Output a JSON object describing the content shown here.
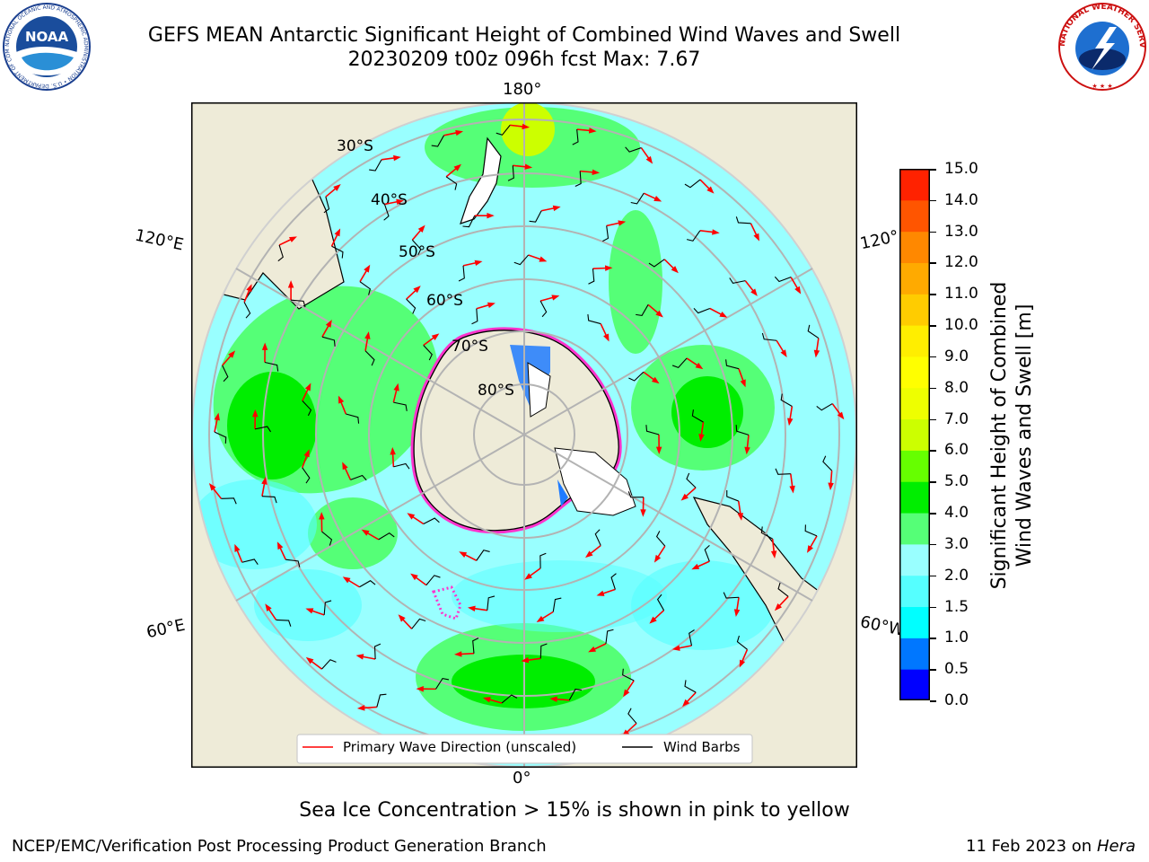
{
  "header": {
    "title_line1": "GEFS MEAN Antarctic Significant Height of Combined Wind Waves and Swell",
    "title_line2": "20230209 t00z 096h fcst   Max: 7.67"
  },
  "logos": {
    "noaa_text": "NOAA",
    "noaa_ring_text": "NATIONAL OCEANIC AND ATMOSPHERIC ADMINISTRATION • U.S. DEPARTMENT OF COMMERCE",
    "nws_ring_text": "NATIONAL WEATHER SERVICE"
  },
  "map": {
    "longitude_labels": {
      "top": "180°",
      "bottom": "0°",
      "left_upper": "120°E",
      "right_upper": "120°",
      "left_lower": "60°E",
      "right_lower": "60°W"
    },
    "latitude_labels": [
      "30°S",
      "40°S",
      "50°S",
      "60°S",
      "70°S",
      "80°S"
    ],
    "legend": {
      "wave_direction": "Primary Wave Direction (unscaled)",
      "wind_barbs": "Wind Barbs"
    },
    "colors": {
      "land": "#eeebd8",
      "ocean_low": "#99ffff",
      "grid": "#b3b3b3",
      "arrow": "#ff0000"
    }
  },
  "colorbar": {
    "label_line1": "Significant Height of Combined",
    "label_line2": "Wind Waves and Swell [m]",
    "ticks": [
      "15.0",
      "14.0",
      "13.0",
      "12.0",
      "11.0",
      "10.0",
      "9.0",
      "8.0",
      "7.0",
      "6.0",
      "5.0",
      "4.0",
      "3.0",
      "2.0",
      "1.5",
      "1.0",
      "0.5",
      "0.0"
    ],
    "colors": [
      "#0000ff",
      "#0077ff",
      "#00ffff",
      "#55ffff",
      "#99ffff",
      "#55ff77",
      "#00ee00",
      "#66ff00",
      "#ccff00",
      "#eeff00",
      "#ffff00",
      "#ffee00",
      "#ffcc00",
      "#ffaa00",
      "#ff8800",
      "#ff5500",
      "#ff2200"
    ]
  },
  "caption": "Sea Ice Concentration > 15% is shown in pink to yellow",
  "footer": {
    "left": "NCEP/EMC/Verification Post Processing Product Generation Branch",
    "right_date": "11 Feb 2023 on",
    "right_machine": "Hera"
  }
}
